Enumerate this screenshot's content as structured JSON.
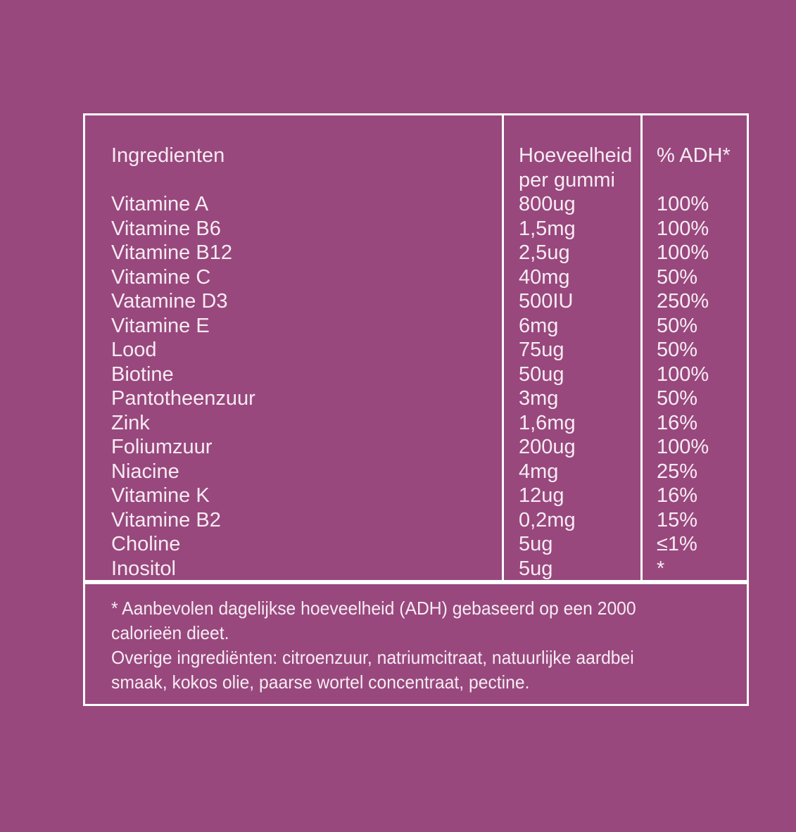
{
  "colors": {
    "background": "#98487d",
    "panel_border": "#ffffff",
    "text": "#f7ebf3"
  },
  "table": {
    "headers": {
      "ingredients": "Ingredienten",
      "amount_line1": "Hoeveelheid",
      "amount_line2": "per gummi",
      "adh": "% ADH*"
    },
    "rows": [
      {
        "ingredient": "Vitamine A",
        "amount": "800ug",
        "adh": "100%"
      },
      {
        "ingredient": "Vitamine B6",
        "amount": "1,5mg",
        "adh": "100%"
      },
      {
        "ingredient": "Vitamine B12",
        "amount": "2,5ug",
        "adh": "100%"
      },
      {
        "ingredient": "Vitamine C",
        "amount": "40mg",
        "adh": "50%"
      },
      {
        "ingredient": "Vatamine D3",
        "amount": "500IU",
        "adh": "250%"
      },
      {
        "ingredient": "Vitamine E",
        "amount": "6mg",
        "adh": "50%"
      },
      {
        "ingredient": "Lood",
        "amount": "75ug",
        "adh": "50%"
      },
      {
        "ingredient": "Biotine",
        "amount": "50ug",
        "adh": "100%"
      },
      {
        "ingredient": "Pantotheenzuur",
        "amount": "3mg",
        "adh": "50%"
      },
      {
        "ingredient": "Zink",
        "amount": "1,6mg",
        "adh": "16%"
      },
      {
        "ingredient": "Foliumzuur",
        "amount": "200ug",
        "adh": "100%"
      },
      {
        "ingredient": "Niacine",
        "amount": "4mg",
        "adh": "25%"
      },
      {
        "ingredient": "Vitamine K",
        "amount": "12ug",
        "adh": "16%"
      },
      {
        "ingredient": "Vitamine B2",
        "amount": "0,2mg",
        "adh": "15%"
      },
      {
        "ingredient": "Choline",
        "amount": "5ug",
        "adh": "≤1%"
      },
      {
        "ingredient": "Inositol",
        "amount": "5ug",
        "adh": "*"
      }
    ]
  },
  "footnote": {
    "lines": [
      "* Aanbevolen dagelijkse hoeveelheid (ADH) gebaseerd op een 2000",
      "calorieën dieet.",
      "Overige ingrediënten: citroenzuur, natriumcitraat, natuurlijke aardbei",
      "smaak, kokos olie, paarse wortel concentraat, pectine."
    ]
  }
}
